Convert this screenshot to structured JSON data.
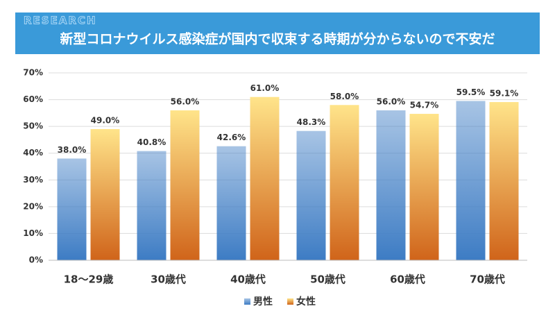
{
  "header": {
    "label": "RESEARCH"
  },
  "chart_data": {
    "type": "bar",
    "title": "新型コロナウイルス感染症が国内で収束する時期が分からないので不安だ",
    "categories": [
      "18〜29歳",
      "30歳代",
      "40歳代",
      "50歳代",
      "60歳代",
      "70歳代"
    ],
    "series": [
      {
        "name": "男性",
        "color": "#3d7cc4",
        "values": [
          38.0,
          40.8,
          42.6,
          48.3,
          56.0,
          59.5
        ],
        "value_labels": [
          "38.0%",
          "40.8%",
          "42.6%",
          "48.3%",
          "56.0%",
          "59.5%"
        ]
      },
      {
        "name": "女性",
        "color": "#d0641a",
        "values": [
          49.0,
          56.0,
          61.0,
          58.0,
          54.7,
          59.1
        ],
        "value_labels": [
          "49.0%",
          "56.0%",
          "61.0%",
          "58.0%",
          "54.7%",
          "59.1%"
        ]
      }
    ],
    "ylim": [
      0,
      70
    ],
    "yticks": [
      {
        "value": 0,
        "label": "0%"
      },
      {
        "value": 10,
        "label": "10%"
      },
      {
        "value": 20,
        "label": "20%"
      },
      {
        "value": 30,
        "label": "30%"
      },
      {
        "value": 40,
        "label": "40%"
      },
      {
        "value": 50,
        "label": "50%"
      },
      {
        "value": 60,
        "label": "60%"
      },
      {
        "value": 70,
        "label": "70%"
      }
    ],
    "grid": true,
    "legend": "bottom"
  }
}
